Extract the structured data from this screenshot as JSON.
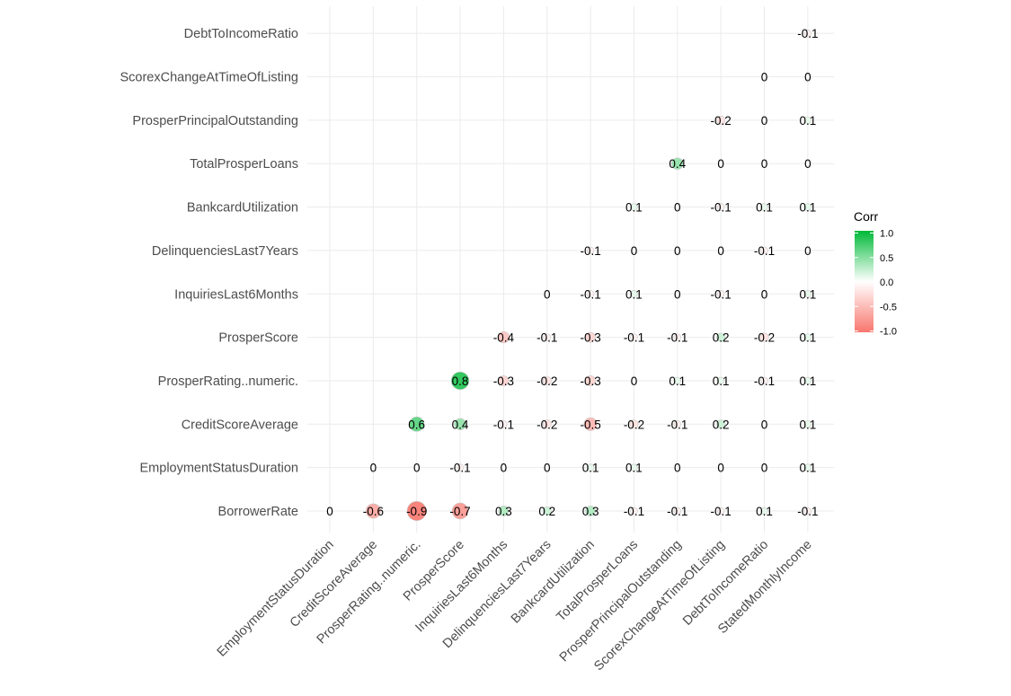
{
  "chart_data": {
    "type": "heatmap",
    "style": "circle correlogram, lower triangle",
    "y_categories": [
      "BorrowerRate",
      "EmploymentStatusDuration",
      "CreditScoreAverage",
      "ProsperRating..numeric.",
      "ProsperScore",
      "InquiriesLast6Months",
      "DelinquenciesLast7Years",
      "BankcardUtilization",
      "TotalProsperLoans",
      "ProsperPrincipalOutstanding",
      "ScorexChangeAtTimeOfListing",
      "DebtToIncomeRatio"
    ],
    "x_categories": [
      "EmploymentStatusDuration",
      "CreditScoreAverage",
      "ProsperRating..numeric.",
      "ProsperScore",
      "InquiriesLast6Months",
      "DelinquenciesLast7Years",
      "BankcardUtilization",
      "TotalProsperLoans",
      "ProsperPrincipalOutstanding",
      "ScorexChangeAtTimeOfListing",
      "DebtToIncomeRatio",
      "StatedMonthlyIncome"
    ],
    "cells": [
      {
        "x": "EmploymentStatusDuration",
        "y": "BorrowerRate",
        "value": 0,
        "label": "0"
      },
      {
        "x": "CreditScoreAverage",
        "y": "BorrowerRate",
        "value": -0.6,
        "label": "-0.6"
      },
      {
        "x": "ProsperRating..numeric.",
        "y": "BorrowerRate",
        "value": -0.9,
        "label": "-0.9"
      },
      {
        "x": "ProsperScore",
        "y": "BorrowerRate",
        "value": -0.7,
        "label": "-0.7"
      },
      {
        "x": "InquiriesLast6Months",
        "y": "BorrowerRate",
        "value": 0.3,
        "label": "0.3"
      },
      {
        "x": "DelinquenciesLast7Years",
        "y": "BorrowerRate",
        "value": 0.2,
        "label": "0.2"
      },
      {
        "x": "BankcardUtilization",
        "y": "BorrowerRate",
        "value": 0.3,
        "label": "0.3"
      },
      {
        "x": "TotalProsperLoans",
        "y": "BorrowerRate",
        "value": -0.1,
        "label": "-0.1"
      },
      {
        "x": "ProsperPrincipalOutstanding",
        "y": "BorrowerRate",
        "value": -0.1,
        "label": "-0.1"
      },
      {
        "x": "ScorexChangeAtTimeOfListing",
        "y": "BorrowerRate",
        "value": -0.1,
        "label": "-0.1"
      },
      {
        "x": "DebtToIncomeRatio",
        "y": "BorrowerRate",
        "value": 0.1,
        "label": "0.1"
      },
      {
        "x": "StatedMonthlyIncome",
        "y": "BorrowerRate",
        "value": -0.1,
        "label": "-0.1"
      },
      {
        "x": "CreditScoreAverage",
        "y": "EmploymentStatusDuration",
        "value": 0,
        "label": "0"
      },
      {
        "x": "ProsperRating..numeric.",
        "y": "EmploymentStatusDuration",
        "value": 0,
        "label": "0"
      },
      {
        "x": "ProsperScore",
        "y": "EmploymentStatusDuration",
        "value": -0.1,
        "label": "-0.1"
      },
      {
        "x": "InquiriesLast6Months",
        "y": "EmploymentStatusDuration",
        "value": 0,
        "label": "0"
      },
      {
        "x": "DelinquenciesLast7Years",
        "y": "EmploymentStatusDuration",
        "value": 0,
        "label": "0"
      },
      {
        "x": "BankcardUtilization",
        "y": "EmploymentStatusDuration",
        "value": 0.1,
        "label": "0.1"
      },
      {
        "x": "TotalProsperLoans",
        "y": "EmploymentStatusDuration",
        "value": 0.1,
        "label": "0.1"
      },
      {
        "x": "ProsperPrincipalOutstanding",
        "y": "EmploymentStatusDuration",
        "value": 0,
        "label": "0"
      },
      {
        "x": "ScorexChangeAtTimeOfListing",
        "y": "EmploymentStatusDuration",
        "value": 0,
        "label": "0"
      },
      {
        "x": "DebtToIncomeRatio",
        "y": "EmploymentStatusDuration",
        "value": 0,
        "label": "0"
      },
      {
        "x": "StatedMonthlyIncome",
        "y": "EmploymentStatusDuration",
        "value": 0.1,
        "label": "0.1"
      },
      {
        "x": "ProsperRating..numeric.",
        "y": "CreditScoreAverage",
        "value": 0.6,
        "label": "0.6"
      },
      {
        "x": "ProsperScore",
        "y": "CreditScoreAverage",
        "value": 0.4,
        "label": "0.4"
      },
      {
        "x": "InquiriesLast6Months",
        "y": "CreditScoreAverage",
        "value": -0.1,
        "label": "-0.1"
      },
      {
        "x": "DelinquenciesLast7Years",
        "y": "CreditScoreAverage",
        "value": -0.2,
        "label": "-0.2"
      },
      {
        "x": "BankcardUtilization",
        "y": "CreditScoreAverage",
        "value": -0.5,
        "label": "-0.5"
      },
      {
        "x": "TotalProsperLoans",
        "y": "CreditScoreAverage",
        "value": -0.2,
        "label": "-0.2"
      },
      {
        "x": "ProsperPrincipalOutstanding",
        "y": "CreditScoreAverage",
        "value": -0.1,
        "label": "-0.1"
      },
      {
        "x": "ScorexChangeAtTimeOfListing",
        "y": "CreditScoreAverage",
        "value": 0.2,
        "label": "0.2"
      },
      {
        "x": "DebtToIncomeRatio",
        "y": "CreditScoreAverage",
        "value": 0,
        "label": "0"
      },
      {
        "x": "StatedMonthlyIncome",
        "y": "CreditScoreAverage",
        "value": 0.1,
        "label": "0.1"
      },
      {
        "x": "ProsperScore",
        "y": "ProsperRating..numeric.",
        "value": 0.8,
        "label": "0.8"
      },
      {
        "x": "InquiriesLast6Months",
        "y": "ProsperRating..numeric.",
        "value": -0.3,
        "label": "-0.3"
      },
      {
        "x": "DelinquenciesLast7Years",
        "y": "ProsperRating..numeric.",
        "value": -0.2,
        "label": "-0.2"
      },
      {
        "x": "BankcardUtilization",
        "y": "ProsperRating..numeric.",
        "value": -0.3,
        "label": "-0.3"
      },
      {
        "x": "TotalProsperLoans",
        "y": "ProsperRating..numeric.",
        "value": 0,
        "label": "0"
      },
      {
        "x": "ProsperPrincipalOutstanding",
        "y": "ProsperRating..numeric.",
        "value": 0.1,
        "label": "0.1"
      },
      {
        "x": "ScorexChangeAtTimeOfListing",
        "y": "ProsperRating..numeric.",
        "value": 0.1,
        "label": "0.1"
      },
      {
        "x": "DebtToIncomeRatio",
        "y": "ProsperRating..numeric.",
        "value": -0.1,
        "label": "-0.1"
      },
      {
        "x": "StatedMonthlyIncome",
        "y": "ProsperRating..numeric.",
        "value": 0.1,
        "label": "0.1"
      },
      {
        "x": "InquiriesLast6Months",
        "y": "ProsperScore",
        "value": -0.4,
        "label": "-0.4"
      },
      {
        "x": "DelinquenciesLast7Years",
        "y": "ProsperScore",
        "value": -0.1,
        "label": "-0.1"
      },
      {
        "x": "BankcardUtilization",
        "y": "ProsperScore",
        "value": -0.3,
        "label": "-0.3"
      },
      {
        "x": "TotalProsperLoans",
        "y": "ProsperScore",
        "value": -0.1,
        "label": "-0.1"
      },
      {
        "x": "ProsperPrincipalOutstanding",
        "y": "ProsperScore",
        "value": -0.1,
        "label": "-0.1"
      },
      {
        "x": "ScorexChangeAtTimeOfListing",
        "y": "ProsperScore",
        "value": 0.2,
        "label": "0.2"
      },
      {
        "x": "DebtToIncomeRatio",
        "y": "ProsperScore",
        "value": -0.2,
        "label": "-0.2"
      },
      {
        "x": "StatedMonthlyIncome",
        "y": "ProsperScore",
        "value": 0.1,
        "label": "0.1"
      },
      {
        "x": "DelinquenciesLast7Years",
        "y": "InquiriesLast6Months",
        "value": 0,
        "label": "0"
      },
      {
        "x": "BankcardUtilization",
        "y": "InquiriesLast6Months",
        "value": -0.1,
        "label": "-0.1"
      },
      {
        "x": "TotalProsperLoans",
        "y": "InquiriesLast6Months",
        "value": 0.1,
        "label": "0.1"
      },
      {
        "x": "ProsperPrincipalOutstanding",
        "y": "InquiriesLast6Months",
        "value": 0,
        "label": "0"
      },
      {
        "x": "ScorexChangeAtTimeOfListing",
        "y": "InquiriesLast6Months",
        "value": -0.1,
        "label": "-0.1"
      },
      {
        "x": "DebtToIncomeRatio",
        "y": "InquiriesLast6Months",
        "value": 0,
        "label": "0"
      },
      {
        "x": "StatedMonthlyIncome",
        "y": "InquiriesLast6Months",
        "value": 0.1,
        "label": "0.1"
      },
      {
        "x": "BankcardUtilization",
        "y": "DelinquenciesLast7Years",
        "value": -0.1,
        "label": "-0.1"
      },
      {
        "x": "TotalProsperLoans",
        "y": "DelinquenciesLast7Years",
        "value": 0,
        "label": "0"
      },
      {
        "x": "ProsperPrincipalOutstanding",
        "y": "DelinquenciesLast7Years",
        "value": 0,
        "label": "0"
      },
      {
        "x": "ScorexChangeAtTimeOfListing",
        "y": "DelinquenciesLast7Years",
        "value": 0,
        "label": "0"
      },
      {
        "x": "DebtToIncomeRatio",
        "y": "DelinquenciesLast7Years",
        "value": -0.1,
        "label": "-0.1"
      },
      {
        "x": "StatedMonthlyIncome",
        "y": "DelinquenciesLast7Years",
        "value": 0,
        "label": "0"
      },
      {
        "x": "TotalProsperLoans",
        "y": "BankcardUtilization",
        "value": 0.1,
        "label": "0.1"
      },
      {
        "x": "ProsperPrincipalOutstanding",
        "y": "BankcardUtilization",
        "value": 0,
        "label": "0"
      },
      {
        "x": "ScorexChangeAtTimeOfListing",
        "y": "BankcardUtilization",
        "value": -0.1,
        "label": "-0.1"
      },
      {
        "x": "DebtToIncomeRatio",
        "y": "BankcardUtilization",
        "value": 0.1,
        "label": "0.1"
      },
      {
        "x": "StatedMonthlyIncome",
        "y": "BankcardUtilization",
        "value": 0.1,
        "label": "0.1"
      },
      {
        "x": "ProsperPrincipalOutstanding",
        "y": "TotalProsperLoans",
        "value": 0.4,
        "label": "0.4"
      },
      {
        "x": "ScorexChangeAtTimeOfListing",
        "y": "TotalProsperLoans",
        "value": 0,
        "label": "0"
      },
      {
        "x": "DebtToIncomeRatio",
        "y": "TotalProsperLoans",
        "value": 0,
        "label": "0"
      },
      {
        "x": "StatedMonthlyIncome",
        "y": "TotalProsperLoans",
        "value": 0,
        "label": "0"
      },
      {
        "x": "ScorexChangeAtTimeOfListing",
        "y": "ProsperPrincipalOutstanding",
        "value": -0.2,
        "label": "-0.2"
      },
      {
        "x": "DebtToIncomeRatio",
        "y": "ProsperPrincipalOutstanding",
        "value": 0,
        "label": "0"
      },
      {
        "x": "StatedMonthlyIncome",
        "y": "ProsperPrincipalOutstanding",
        "value": 0.1,
        "label": "0.1"
      },
      {
        "x": "DebtToIncomeRatio",
        "y": "ScorexChangeAtTimeOfListing",
        "value": 0,
        "label": "0"
      },
      {
        "x": "StatedMonthlyIncome",
        "y": "ScorexChangeAtTimeOfListing",
        "value": 0,
        "label": "0"
      },
      {
        "x": "StatedMonthlyIncome",
        "y": "DebtToIncomeRatio",
        "value": -0.1,
        "label": "-0.1"
      }
    ],
    "legend": {
      "title": "Corr",
      "position": "right",
      "range": [
        -1.0,
        1.0
      ],
      "ticks": [
        "1.0",
        "0.5",
        "0.0",
        "-0.5",
        "-1.0"
      ],
      "colors": {
        "low": "#F8766D",
        "mid": "#FFFFFF",
        "high": "#00BA38"
      }
    },
    "grid": true,
    "title": "",
    "xlabel": "",
    "ylabel": ""
  }
}
